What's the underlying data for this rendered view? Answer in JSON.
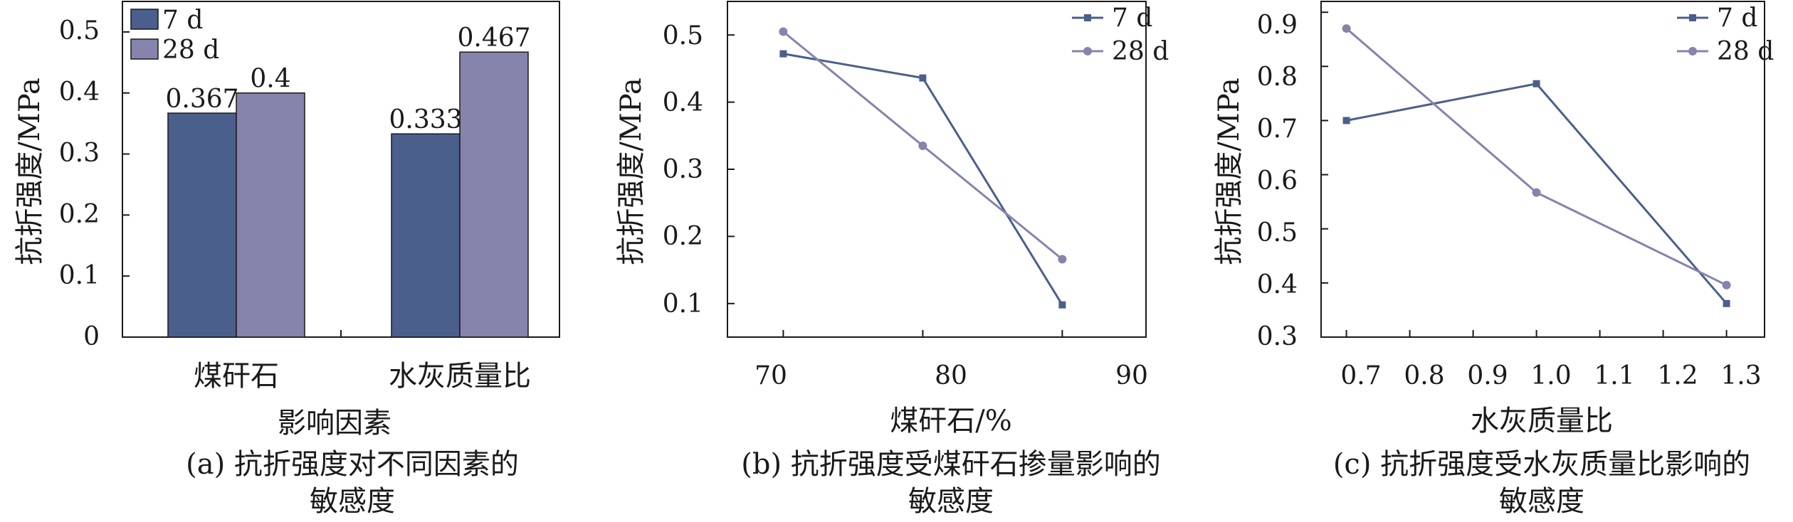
{
  "colors": {
    "s7": "#4a5f8c",
    "s28": "#8683ac",
    "axis": "#1a1a1a"
  },
  "chart_data": [
    {
      "type": "bar",
      "caption_line1": "(a) 抗折强度对不同因素的",
      "caption_line2": "敏感度",
      "xlabel": "影响因素",
      "ylabel": "抗折强度/MPa",
      "categories": [
        "煤矸石",
        "水灰质量比"
      ],
      "series": [
        {
          "name": "7 d",
          "values": [
            0.367,
            0.333
          ],
          "labels": [
            "0.367",
            "0.333"
          ]
        },
        {
          "name": "28 d",
          "values": [
            0.4,
            0.467
          ],
          "labels": [
            "0.4",
            "0.467"
          ]
        }
      ],
      "ylim": [
        0,
        0.55
      ],
      "yticks": [
        0,
        0.1,
        0.2,
        0.3,
        0.4,
        0.5
      ],
      "ytick_labels": [
        "0",
        "0.1",
        "0.2",
        "0.3",
        "0.4",
        "0.5"
      ],
      "legend": "top-left"
    },
    {
      "type": "line",
      "caption_line1": "(b) 抗折强度受煤矸石掺量影响的",
      "caption_line2": "敏感度",
      "xlabel": "煤矸石/%",
      "ylabel": "抗折强度/MPa",
      "x": [
        70,
        80,
        90
      ],
      "series": [
        {
          "name": "7 d",
          "values": [
            0.472,
            0.436,
            0.098
          ],
          "marker": "square"
        },
        {
          "name": "28 d",
          "values": [
            0.505,
            0.335,
            0.166
          ],
          "marker": "circle"
        }
      ],
      "xlim": [
        66,
        96
      ],
      "xticks": [
        70,
        80,
        90
      ],
      "xtick_labels": [
        "70",
        "80",
        "90"
      ],
      "ylim": [
        0.05,
        0.55
      ],
      "yticks": [
        0.1,
        0.2,
        0.3,
        0.4,
        0.5
      ],
      "ytick_labels": [
        "0.1",
        "0.2",
        "0.3",
        "0.4",
        "0.5"
      ],
      "legend": "top-right"
    },
    {
      "type": "line",
      "caption_line1": "(c) 抗折强度受水灰质量比影响的",
      "caption_line2": "敏感度",
      "xlabel": "水灰质量比",
      "ylabel": "抗折强度/MPa",
      "x": [
        0.7,
        1.0,
        1.3
      ],
      "series": [
        {
          "name": "7 d",
          "values": [
            0.7,
            0.768,
            0.362
          ],
          "marker": "square"
        },
        {
          "name": "28 d",
          "values": [
            0.87,
            0.567,
            0.396
          ],
          "marker": "circle"
        }
      ],
      "xlim": [
        0.66,
        1.36
      ],
      "xticks": [
        0.7,
        0.8,
        0.9,
        1.0,
        1.1,
        1.2,
        1.3
      ],
      "xtick_labels": [
        "0.7",
        "0.8",
        "0.9",
        "1.0",
        "1.1",
        "1.2",
        "1.3"
      ],
      "ylim": [
        0.3,
        0.92
      ],
      "yticks": [
        0.3,
        0.4,
        0.5,
        0.6,
        0.7,
        0.8,
        0.9
      ],
      "ytick_labels": [
        "0.3",
        "0.4",
        "0.5",
        "0.6",
        "0.7",
        "0.8",
        "0.9"
      ],
      "legend": "top-right"
    }
  ]
}
